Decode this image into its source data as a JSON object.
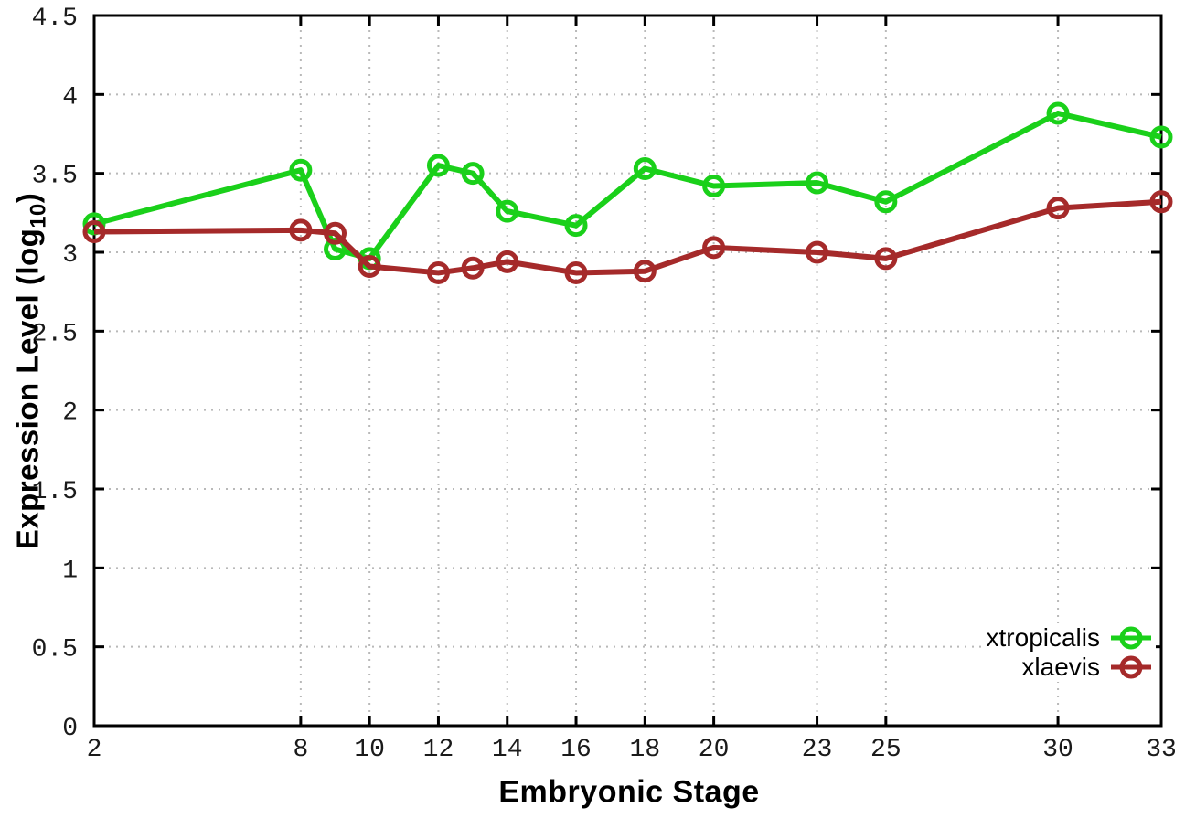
{
  "chart_data": {
    "type": "line",
    "title": "",
    "xlabel": "Embryonic Stage",
    "ylabel_main": "Expression Level (log",
    "ylabel_sub": "10",
    "ylabel_close": ")",
    "marker": "open-circle",
    "grid": true,
    "legend_position": "bottom-right",
    "xlim": [
      2,
      33
    ],
    "ylim": [
      0,
      4.5
    ],
    "x": [
      2,
      8,
      9,
      10,
      12,
      13,
      14,
      16,
      18,
      20,
      23,
      25,
      30,
      33
    ],
    "x_tick_labels": [
      2,
      8,
      10,
      12,
      14,
      16,
      18,
      20,
      23,
      25,
      30,
      33
    ],
    "y_ticks": [
      0,
      0.5,
      1,
      1.5,
      2,
      2.5,
      3,
      3.5,
      4,
      4.5
    ],
    "series": [
      {
        "name": "xtropicalis",
        "color": "#1ad01a",
        "values": [
          3.18,
          3.52,
          3.02,
          2.96,
          3.55,
          3.5,
          3.26,
          3.17,
          3.53,
          3.42,
          3.44,
          3.32,
          3.88,
          3.73
        ]
      },
      {
        "name": "xlaevis",
        "color": "#a52a2a",
        "values": [
          3.13,
          3.14,
          3.12,
          2.91,
          2.87,
          2.9,
          2.94,
          2.87,
          2.88,
          3.03,
          3.0,
          2.96,
          3.28,
          3.32
        ]
      }
    ]
  },
  "colors": {
    "grid": "#b9b9b9",
    "axis": "#000000",
    "tick_text": "#1a1a1a"
  }
}
